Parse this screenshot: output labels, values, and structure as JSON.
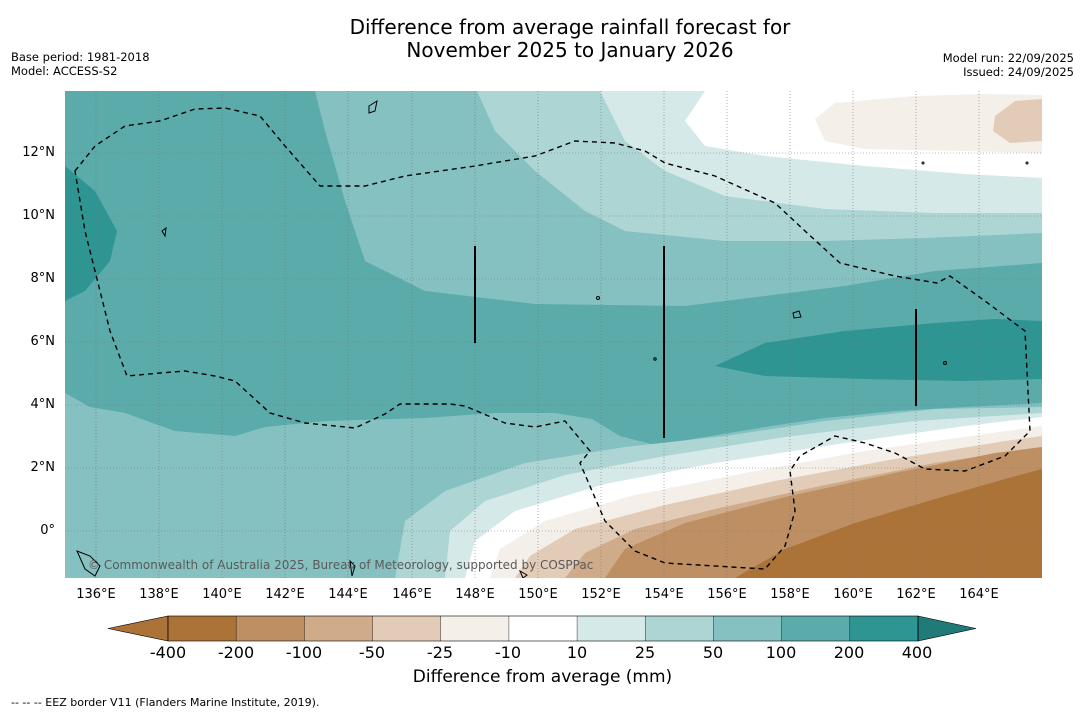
{
  "title": {
    "line1": "Difference from average rainfall forecast for",
    "line2": "November 2025 to January 2026"
  },
  "meta_left": {
    "base_period": "Base period: 1981-2018",
    "model": "Model: ACCESS-S2"
  },
  "meta_right": {
    "model_run": "Model run: 22/09/2025",
    "issued": "Issued: 24/09/2025"
  },
  "map": {
    "lat_labels": [
      "12°N",
      "10°N",
      "8°N",
      "6°N",
      "4°N",
      "2°N",
      "0°"
    ],
    "lon_labels": [
      "136°E",
      "138°E",
      "140°E",
      "142°E",
      "144°E",
      "146°E",
      "148°E",
      "150°E",
      "152°E",
      "154°E",
      "156°E",
      "158°E",
      "160°E",
      "162°E",
      "164°E"
    ],
    "copyright": "© Commonwealth of Australia 2025, Bureau of Meteorology, supported by COSPPac"
  },
  "colorbar": {
    "labels": [
      "-400",
      "-200",
      "-100",
      "-50",
      "-25",
      "-10",
      "10",
      "25",
      "50",
      "100",
      "200",
      "400"
    ],
    "colors": [
      "#ab7338",
      "#bd8f62",
      "#cfab89",
      "#e2ccb7",
      "#f4efe9",
      "#ffffff",
      "#d5e9e8",
      "#acd5d4",
      "#85c1c0",
      "#5aabaa",
      "#2e9593",
      "#207a78"
    ],
    "title": "Difference from average (mm)"
  },
  "footer": "--  --  -- EEZ border V11 (Flanders Marine Institute, 2019)."
}
